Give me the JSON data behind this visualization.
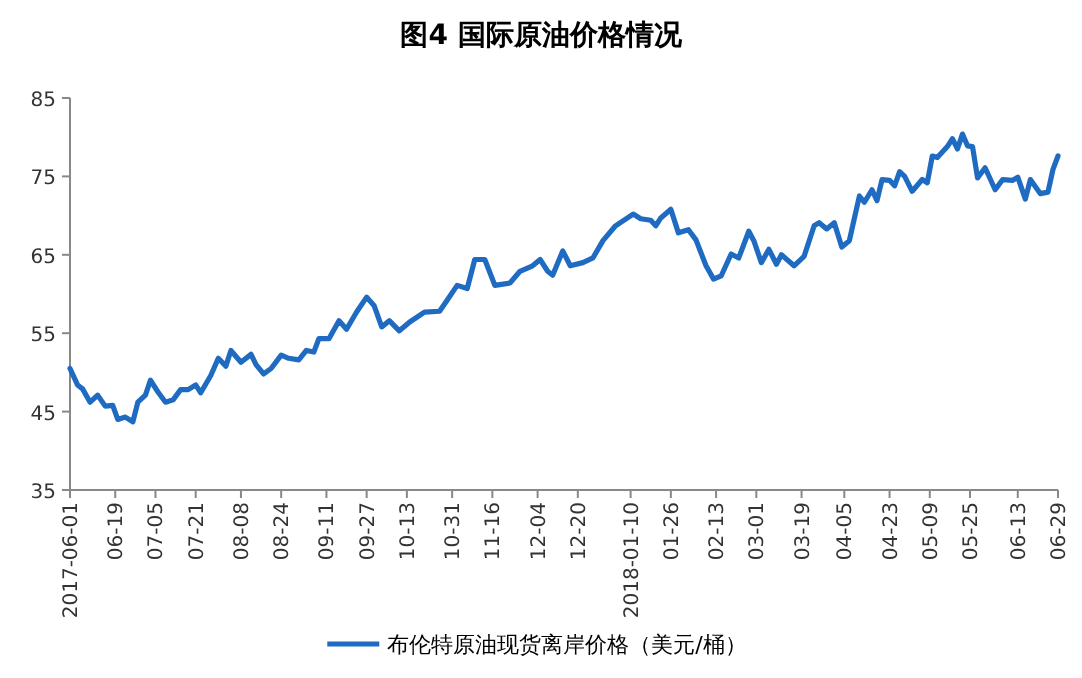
{
  "chart_data": {
    "type": "line",
    "title": "图4 国际原油价格情况",
    "x": [
      "2017-06-01",
      "2017-06-04",
      "2017-06-06",
      "2017-06-09",
      "2017-06-12",
      "2017-06-15",
      "2017-06-18",
      "2017-06-20",
      "2017-06-23",
      "2017-06-26",
      "2017-06-28",
      "2017-07-01",
      "2017-07-03",
      "2017-07-06",
      "2017-07-09",
      "2017-07-12",
      "2017-07-15",
      "2017-07-18",
      "2017-07-21",
      "2017-07-23",
      "2017-07-27",
      "2017-07-30",
      "2017-08-02",
      "2017-08-04",
      "2017-08-08",
      "2017-08-12",
      "2017-08-14",
      "2017-08-17",
      "2017-08-20",
      "2017-08-24",
      "2017-08-27",
      "2017-08-31",
      "2017-09-03",
      "2017-09-06",
      "2017-09-08",
      "2017-09-12",
      "2017-09-16",
      "2017-09-19",
      "2017-09-23",
      "2017-09-27",
      "2017-09-30",
      "2017-10-03",
      "2017-10-06",
      "2017-10-10",
      "2017-10-14",
      "2017-10-20",
      "2017-10-26",
      "2017-10-29",
      "2017-11-02",
      "2017-11-06",
      "2017-11-09",
      "2017-11-13",
      "2017-11-17",
      "2017-11-23",
      "2017-11-27",
      "2017-12-02",
      "2017-12-05",
      "2017-12-08",
      "2017-12-10",
      "2017-12-14",
      "2017-12-17",
      "2017-12-22",
      "2017-12-26",
      "2017-12-30",
      "2018-01-04",
      "2018-01-11",
      "2018-01-14",
      "2018-01-18",
      "2018-01-20",
      "2018-01-22",
      "2018-01-26",
      "2018-01-29",
      "2018-02-02",
      "2018-02-05",
      "2018-02-09",
      "2018-02-12",
      "2018-02-15",
      "2018-02-19",
      "2018-02-22",
      "2018-02-26",
      "2018-02-28",
      "2018-03-03",
      "2018-03-06",
      "2018-03-09",
      "2018-03-11",
      "2018-03-16",
      "2018-03-20",
      "2018-03-24",
      "2018-03-26",
      "2018-03-29",
      "2018-04-01",
      "2018-04-04",
      "2018-04-07",
      "2018-04-11",
      "2018-04-13",
      "2018-04-16",
      "2018-04-18",
      "2018-04-20",
      "2018-04-23",
      "2018-04-25",
      "2018-04-27",
      "2018-04-29",
      "2018-05-02",
      "2018-05-06",
      "2018-05-08",
      "2018-05-10",
      "2018-05-12",
      "2018-05-16",
      "2018-05-18",
      "2018-05-20",
      "2018-05-22",
      "2018-05-24",
      "2018-05-26",
      "2018-05-28",
      "2018-05-31",
      "2018-06-04",
      "2018-06-07",
      "2018-06-11",
      "2018-06-13",
      "2018-06-16",
      "2018-06-18",
      "2018-06-22",
      "2018-06-25",
      "2018-06-27",
      "2018-06-29"
    ],
    "series": [
      {
        "name": "布伦特原油现货离岸价格（美元/桶）",
        "color": "#1f6bc1",
        "values": [
          50.5,
          48.4,
          47.9,
          46.2,
          47.1,
          45.7,
          45.8,
          44.0,
          44.3,
          43.7,
          46.2,
          47.1,
          49.0,
          47.5,
          46.2,
          46.5,
          47.8,
          47.8,
          48.4,
          47.4,
          49.6,
          51.8,
          50.8,
          52.8,
          51.3,
          52.3,
          51.0,
          49.8,
          50.5,
          52.2,
          51.8,
          51.6,
          52.8,
          52.6,
          54.3,
          54.3,
          56.6,
          55.5,
          57.7,
          59.6,
          58.5,
          55.8,
          56.6,
          55.3,
          56.4,
          57.7,
          57.8,
          59.2,
          61.1,
          60.7,
          64.4,
          64.4,
          61.1,
          61.4,
          62.9,
          63.6,
          64.4,
          62.9,
          62.4,
          65.5,
          63.6,
          64.0,
          64.6,
          66.8,
          68.7,
          70.2,
          69.6,
          69.4,
          68.7,
          69.7,
          70.8,
          67.8,
          68.2,
          66.9,
          63.6,
          61.9,
          62.3,
          65.1,
          64.6,
          68.0,
          66.8,
          64.0,
          65.7,
          63.8,
          65.0,
          63.6,
          64.8,
          68.7,
          69.1,
          68.3,
          69.1,
          66.0,
          66.8,
          72.5,
          71.7,
          73.3,
          71.9,
          74.6,
          74.5,
          73.8,
          75.6,
          75.0,
          73.1,
          74.6,
          74.2,
          77.6,
          77.4,
          78.8,
          79.8,
          78.5,
          80.4,
          78.9,
          78.8,
          74.8,
          76.1,
          73.3,
          74.6,
          74.5,
          74.9,
          72.1,
          74.6,
          72.8,
          73.0,
          75.9,
          77.6
        ]
      }
    ],
    "xlim": [
      "2017-06-01",
      "2018-06-29"
    ],
    "xticks": [
      {
        "value": "2017-06-01",
        "label": "2017-06-01"
      },
      {
        "value": "2017-06-19",
        "label": "06-19"
      },
      {
        "value": "2017-07-05",
        "label": "07-05"
      },
      {
        "value": "2017-07-21",
        "label": "07-21"
      },
      {
        "value": "2017-08-08",
        "label": "08-08"
      },
      {
        "value": "2017-08-24",
        "label": "08-24"
      },
      {
        "value": "2017-09-11",
        "label": "09-11"
      },
      {
        "value": "2017-09-27",
        "label": "09-27"
      },
      {
        "value": "2017-10-13",
        "label": "10-13"
      },
      {
        "value": "2017-10-31",
        "label": "10-31"
      },
      {
        "value": "2017-11-16",
        "label": "11-16"
      },
      {
        "value": "2017-12-04",
        "label": "12-04"
      },
      {
        "value": "2017-12-20",
        "label": "12-20"
      },
      {
        "value": "2018-01-10",
        "label": "2018-01-10"
      },
      {
        "value": "2018-01-26",
        "label": "01-26"
      },
      {
        "value": "2018-02-13",
        "label": "02-13"
      },
      {
        "value": "2018-03-01",
        "label": "03-01"
      },
      {
        "value": "2018-03-19",
        "label": "03-19"
      },
      {
        "value": "2018-04-05",
        "label": "04-05"
      },
      {
        "value": "2018-04-23",
        "label": "04-23"
      },
      {
        "value": "2018-05-09",
        "label": "05-09"
      },
      {
        "value": "2018-05-25",
        "label": "05-25"
      },
      {
        "value": "2018-06-13",
        "label": "06-13"
      },
      {
        "value": "2018-06-29",
        "label": "06-29"
      }
    ],
    "ylim": [
      35,
      85
    ],
    "yticks": [
      35,
      45,
      55,
      65,
      75,
      85
    ],
    "legend": "bottom"
  }
}
